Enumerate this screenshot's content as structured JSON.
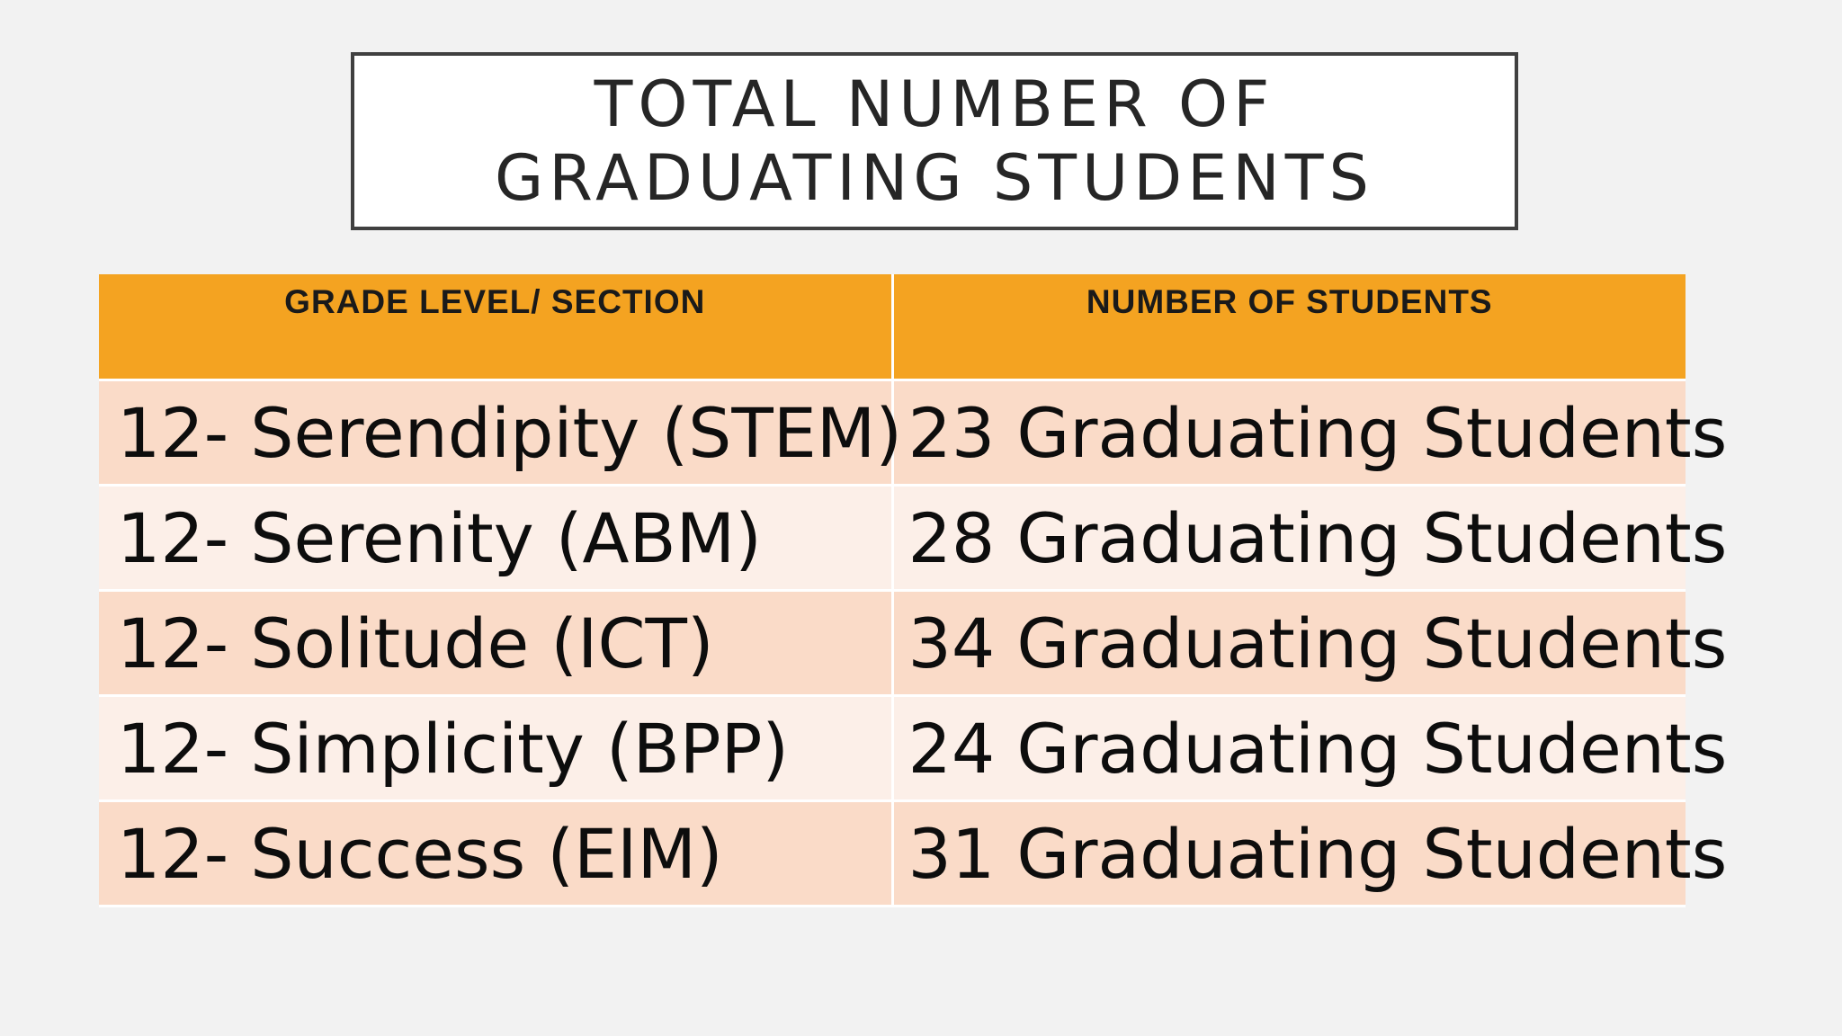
{
  "title": {
    "line1": "TOTAL NUMBER OF",
    "line2": "GRADUATING STUDENTS"
  },
  "table": {
    "headers": [
      "GRADE LEVEL/ SECTION",
      "NUMBER OF STUDENTS"
    ],
    "rows": [
      [
        "12- Serendipity (STEM)",
        "23 Graduating Students"
      ],
      [
        "12- Serenity (ABM)",
        "28 Graduating Students"
      ],
      [
        "12- Solitude (ICT)",
        "34 Graduating Students"
      ],
      [
        "12- Simplicity (BPP)",
        "24 Graduating Students"
      ],
      [
        "12- Success (EIM)",
        "31 Graduating Students"
      ]
    ]
  },
  "colors": {
    "header_bg": "#f4a321",
    "row_dark": "#fadbc8",
    "row_light": "#fcefe8",
    "background": "#f2f2f2"
  }
}
